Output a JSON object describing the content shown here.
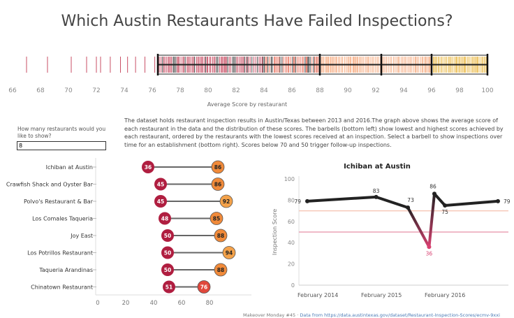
{
  "page_title": "Which Austin Restaurants Have Failed Inspections?",
  "distribution": {
    "axis_label": "Average Score by restaurant",
    "ticks": [
      66,
      68,
      70,
      72,
      74,
      76,
      78,
      80,
      82,
      84,
      86,
      88,
      90,
      92,
      94,
      96,
      98,
      100
    ],
    "xlim": [
      66,
      100
    ],
    "boxes": [
      {
        "from": 76.4,
        "to": 88
      },
      {
        "from": 88,
        "to": 92.4
      },
      {
        "from": 92.4,
        "to": 96
      },
      {
        "from": 96,
        "to": 100
      }
    ],
    "colors": {
      "low": "#c0304a",
      "mid": "#e8604a",
      "high": "#f5a070",
      "top": "#e8b030"
    }
  },
  "description": "The dataset holds restaurant inspection results in Austin/Texas between 2013 and 2016.The graph above shows the average score of each restaurant in the data and the distribution of these scores. The barbells (bottom left) show lowest and highest scores achieved by each restaurant, ordered by the restaurants with the lowest scores received at an inspection. Select a barbell to show inspections over time for an establishment (bottom right). Scores below 70 and 50 trigger follow-up inspections.",
  "control": {
    "question": "How many restaurants would you like to show?",
    "value": "8"
  },
  "barbell": {
    "x_ticks": [
      0,
      20,
      40,
      60,
      80
    ],
    "xlim": [
      0,
      100
    ],
    "colors": {
      "low": "#b01e40",
      "high": "#f08a3a",
      "bar": "#666666"
    },
    "restaurants": [
      {
        "name": "Ichiban at Austin",
        "min": 36,
        "max": 86
      },
      {
        "name": "Crawfish Shack and Oyster Bar",
        "min": 45,
        "max": 86
      },
      {
        "name": "Polvo's Restaurant & Bar",
        "min": 45,
        "max": 92
      },
      {
        "name": "Los Comales Taqueria",
        "min": 48,
        "max": 85
      },
      {
        "name": "Joy East",
        "min": 50,
        "max": 88
      },
      {
        "name": "Los Potrillos Restaurant",
        "min": 50,
        "max": 94
      },
      {
        "name": "Taqueria Arandinas",
        "min": 50,
        "max": 88
      },
      {
        "name": "Chinatown Restaurant",
        "min": 51,
        "max": 76
      }
    ]
  },
  "chart_data": {
    "type": "line",
    "title": "Ichiban at Austin",
    "ylabel": "Inspection Score",
    "ylim": [
      0,
      100
    ],
    "y_ticks": [
      0,
      20,
      40,
      60,
      80,
      100
    ],
    "x_ticks": [
      "February 2014",
      "February 2015",
      "February 2016"
    ],
    "thresholds": [
      70,
      50
    ],
    "points": [
      {
        "x": "2013-12",
        "y": 79
      },
      {
        "x": "2015-01",
        "y": 83
      },
      {
        "x": "2015-07",
        "y": 73
      },
      {
        "x": "2015-11",
        "y": 36
      },
      {
        "x": "2015-12",
        "y": 86
      },
      {
        "x": "2016-02",
        "y": 75
      },
      {
        "x": "2016-12",
        "y": 79
      }
    ]
  },
  "credit": {
    "lead": "Makeover Monday #45 ·",
    "source": "Data from https://data.austintexas.gov/dataset/Restaurant-Inspection-Scores/ecmv-9xxi"
  }
}
